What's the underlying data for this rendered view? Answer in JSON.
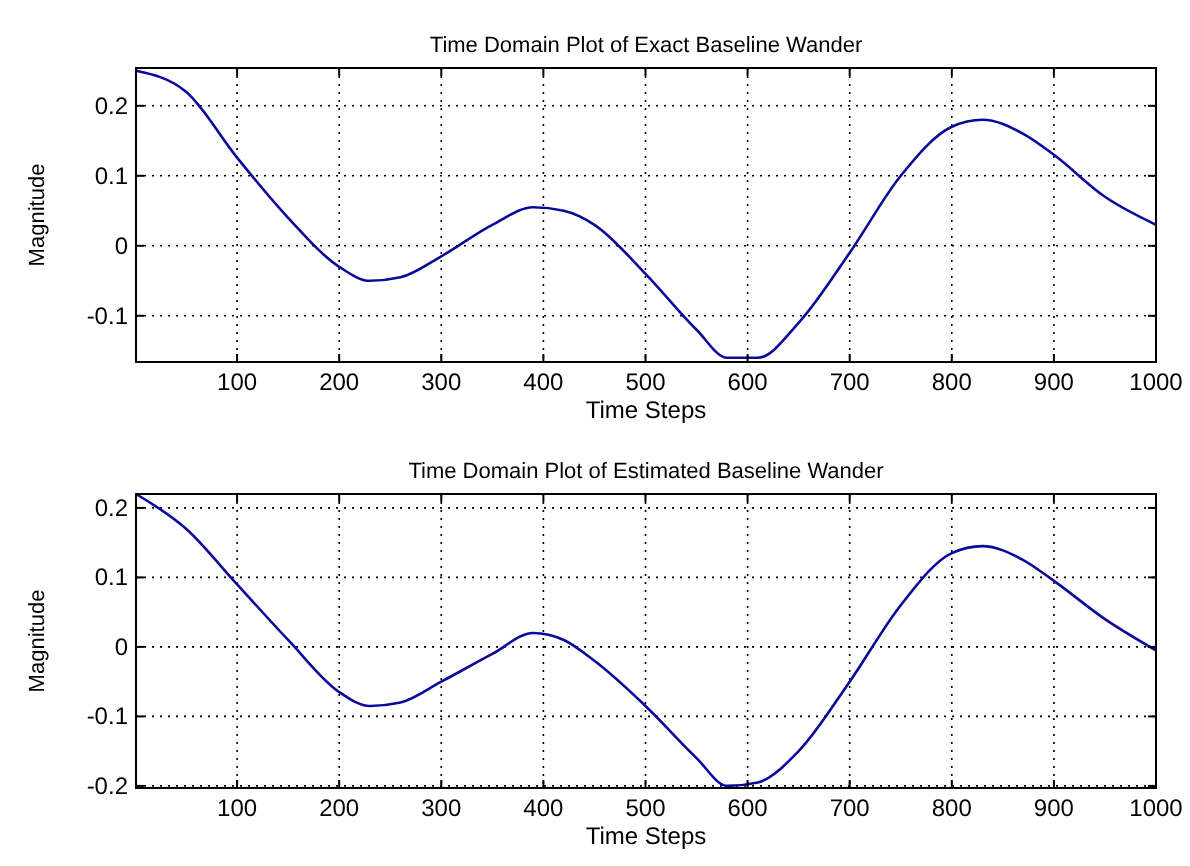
{
  "chart_data": [
    {
      "type": "line",
      "title": "Time Domain Plot of Exact Baseline Wander",
      "xlabel": "Time Steps",
      "ylabel": "Magnitude",
      "xlim": [
        1,
        1000
      ],
      "xticks": [
        100,
        200,
        300,
        400,
        500,
        600,
        700,
        800,
        900,
        1000
      ],
      "ylim": [
        -0.166,
        0.254
      ],
      "yticks": [
        -0.1,
        0,
        0.1,
        0.2
      ],
      "grid": true,
      "x": [
        1,
        50,
        100,
        150,
        200,
        230,
        260,
        300,
        350,
        390,
        420,
        450,
        500,
        550,
        580,
        610,
        650,
        700,
        750,
        800,
        830,
        870,
        900,
        950,
        1000
      ],
      "series": [
        {
          "color": "#0a0a9a",
          "values": [
            0.25,
            0.22,
            0.126,
            0.04,
            -0.03,
            -0.05,
            -0.045,
            -0.015,
            0.03,
            0.055,
            0.05,
            0.03,
            -0.04,
            -0.12,
            -0.16,
            -0.16,
            -0.11,
            -0.01,
            0.1,
            0.17,
            0.18,
            0.16,
            0.13,
            0.07,
            0.03
          ]
        }
      ]
    },
    {
      "type": "line",
      "title": "Time Domain Plot of Estimated Baseline Wander",
      "xlabel": "Time Steps",
      "ylabel": "Magnitude",
      "xlim": [
        1,
        1000
      ],
      "xticks": [
        100,
        200,
        300,
        400,
        500,
        600,
        700,
        800,
        900,
        1000
      ],
      "ylim": [
        -0.203,
        0.22
      ],
      "yticks": [
        -0.2,
        -0.1,
        0,
        0.1,
        0.2
      ],
      "grid": true,
      "x": [
        1,
        50,
        100,
        150,
        200,
        230,
        260,
        300,
        350,
        390,
        420,
        450,
        500,
        550,
        580,
        610,
        650,
        700,
        750,
        800,
        830,
        870,
        900,
        950,
        1000
      ],
      "series": [
        {
          "color": "#0a0a9a",
          "values": [
            0.22,
            0.17,
            0.09,
            0.01,
            -0.065,
            -0.085,
            -0.08,
            -0.05,
            -0.01,
            0.02,
            0.01,
            -0.02,
            -0.085,
            -0.16,
            -0.2,
            -0.195,
            -0.15,
            -0.05,
            0.06,
            0.135,
            0.145,
            0.125,
            0.095,
            0.04,
            -0.005
          ]
        }
      ]
    }
  ]
}
